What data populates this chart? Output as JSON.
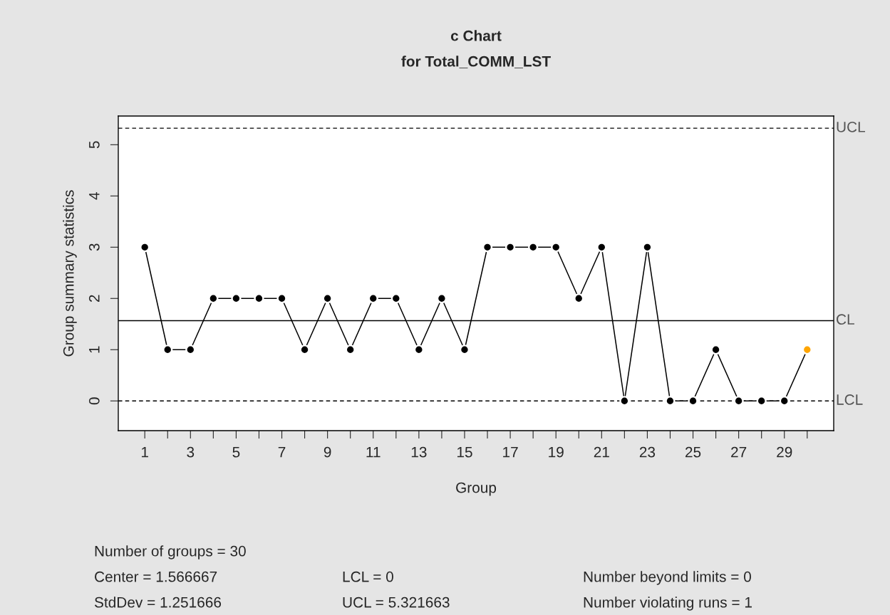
{
  "chart_data": {
    "type": "line",
    "title": "c Chart",
    "subtitle": "for Total_COMM_LST",
    "xlabel": "Group",
    "ylabel": "Group summary statistics",
    "x": [
      1,
      2,
      3,
      4,
      5,
      6,
      7,
      8,
      9,
      10,
      11,
      12,
      13,
      14,
      15,
      16,
      17,
      18,
      19,
      20,
      21,
      22,
      23,
      24,
      25,
      26,
      27,
      28,
      29,
      30
    ],
    "series": [
      {
        "color": "#000000",
        "values": [
          3,
          1,
          1,
          2,
          2,
          2,
          2,
          1,
          2,
          1,
          2,
          2,
          1,
          2,
          1,
          3,
          3,
          3,
          3,
          2,
          3,
          0,
          3,
          0,
          0,
          1,
          0,
          0,
          0,
          1
        ],
        "colors": [
          "#000000",
          "#000000",
          "#000000",
          "#000000",
          "#000000",
          "#000000",
          "#000000",
          "#000000",
          "#000000",
          "#000000",
          "#000000",
          "#000000",
          "#000000",
          "#000000",
          "#000000",
          "#000000",
          "#000000",
          "#000000",
          "#000000",
          "#000000",
          "#000000",
          "#000000",
          "#000000",
          "#000000",
          "#000000",
          "#000000",
          "#000000",
          "#000000",
          "#000000",
          "#ffa500"
        ]
      }
    ],
    "xlim": [
      -0.16,
      31.16
    ],
    "ylim": [
      -0.58,
      5.56
    ],
    "xticks": [
      1,
      {
        "value": 2,
        "label": null
      },
      3,
      {
        "value": 4,
        "label": null
      },
      5,
      {
        "value": 6,
        "label": null
      },
      7,
      {
        "value": 8,
        "label": null
      },
      9,
      {
        "value": 10,
        "label": null
      },
      11,
      {
        "value": 12,
        "label": null
      },
      13,
      {
        "value": 14,
        "label": null
      },
      15,
      {
        "value": 16,
        "label": null
      },
      17,
      {
        "value": 18,
        "label": null
      },
      19,
      {
        "value": 20,
        "label": null
      },
      21,
      {
        "value": 22,
        "label": null
      },
      23,
      {
        "value": 24,
        "label": null
      },
      25,
      {
        "value": 26,
        "label": null
      },
      27,
      {
        "value": 28,
        "label": null
      },
      29,
      {
        "value": 30,
        "label": null
      }
    ],
    "yticks": [
      0,
      1,
      2,
      3,
      4,
      5
    ],
    "ref_lines": [
      {
        "axis": "y",
        "value": 5.321663,
        "label": "UCL",
        "line_style": "dashed"
      },
      {
        "axis": "y",
        "value": 1.566667,
        "label": "CL",
        "line_style": "solid"
      },
      {
        "axis": "y",
        "value": 0,
        "label": "LCL",
        "line_style": "dashed"
      }
    ],
    "annotations": [
      "Number of groups = 30",
      "Center = 1.566667",
      "StdDev = 1.251666",
      "LCL = 0",
      "UCL = 5.321663",
      "Number beyond limits = 0",
      "Number violating runs = 1"
    ],
    "grid": false,
    "legend": false,
    "marker": "circle",
    "line_style": "solid"
  }
}
